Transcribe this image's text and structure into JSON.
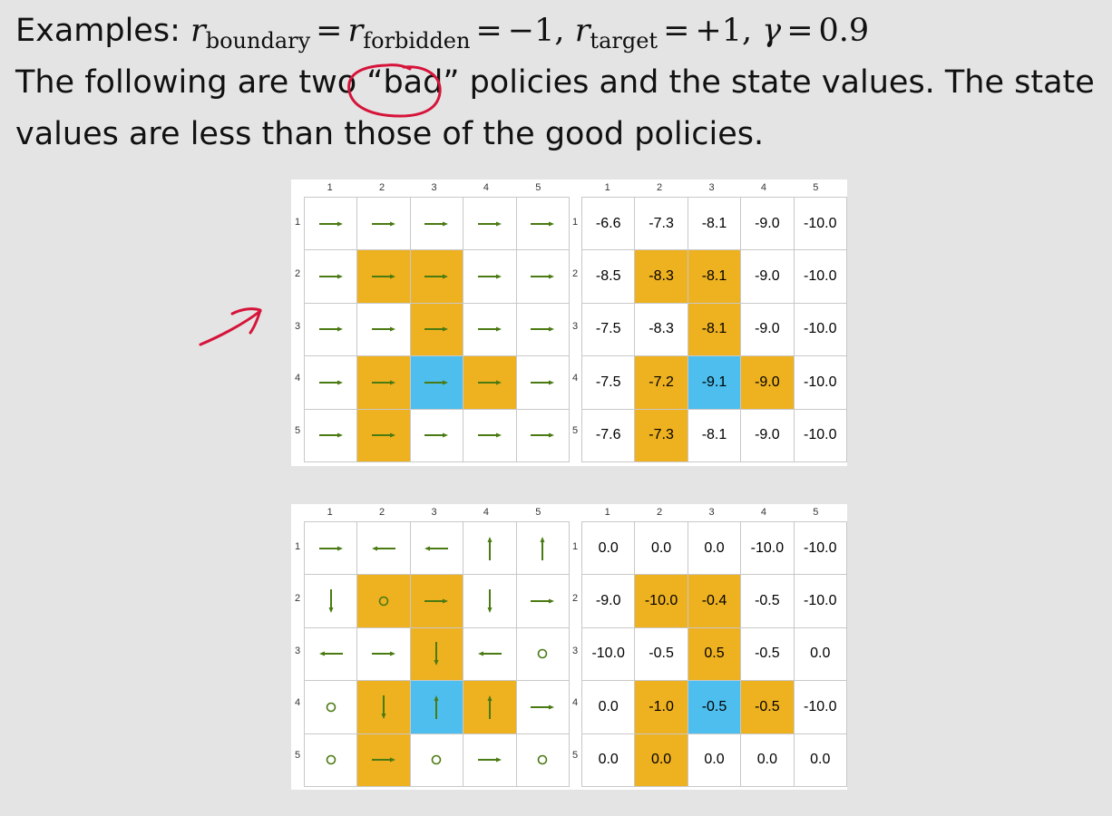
{
  "slide": {
    "line1_prefix": "Examples: ",
    "line2": "The following are two “bad” policies and the state values. The state",
    "line3": "values are less than those of the good policies."
  },
  "math": {
    "r_symbol": "r",
    "boundary_sub": "boundary",
    "forbidden_sub": "forbidden",
    "target_sub": "target",
    "eq": "=",
    "boundary_value": "−1",
    "target_value": "+1",
    "gamma_symbol": "γ",
    "gamma_value": "0.9",
    "comma": ","
  },
  "grid_labels": {
    "cols": [
      "1",
      "2",
      "3",
      "4",
      "5"
    ],
    "rows": [
      "1",
      "2",
      "3",
      "4",
      "5"
    ]
  },
  "colors": {
    "forbidden": "#eeb120",
    "target": "#4dbeed",
    "arrow": "#4a7a12",
    "annotation": "#d6143a"
  },
  "cell_types": [
    [
      "",
      "",
      "",
      "",
      ""
    ],
    [
      "",
      "forbidden",
      "forbidden",
      "",
      ""
    ],
    [
      "",
      "",
      "forbidden",
      "",
      ""
    ],
    [
      "",
      "forbidden",
      "target",
      "forbidden",
      ""
    ],
    [
      "",
      "forbidden",
      "",
      "",
      ""
    ]
  ],
  "examples": [
    {
      "actions": [
        [
          "right",
          "right",
          "right",
          "right",
          "right"
        ],
        [
          "right",
          "right",
          "right",
          "right",
          "right"
        ],
        [
          "right",
          "right",
          "right",
          "right",
          "right"
        ],
        [
          "right",
          "right",
          "right",
          "right",
          "right"
        ],
        [
          "right",
          "right",
          "right",
          "right",
          "right"
        ]
      ],
      "values": [
        [
          "-6.6",
          "-7.3",
          "-8.1",
          "-9.0",
          "-10.0"
        ],
        [
          "-8.5",
          "-8.3",
          "-8.1",
          "-9.0",
          "-10.0"
        ],
        [
          "-7.5",
          "-8.3",
          "-8.1",
          "-9.0",
          "-10.0"
        ],
        [
          "-7.5",
          "-7.2",
          "-9.1",
          "-9.0",
          "-10.0"
        ],
        [
          "-7.6",
          "-7.3",
          "-8.1",
          "-9.0",
          "-10.0"
        ]
      ]
    },
    {
      "actions": [
        [
          "right",
          "left",
          "left",
          "up",
          "up"
        ],
        [
          "down",
          "stay",
          "right",
          "down",
          "right"
        ],
        [
          "left",
          "right",
          "down",
          "left",
          "stay"
        ],
        [
          "stay",
          "down",
          "up",
          "up",
          "right"
        ],
        [
          "stay",
          "right",
          "stay",
          "right",
          "stay"
        ]
      ],
      "values": [
        [
          "0.0",
          "0.0",
          "0.0",
          "-10.0",
          "-10.0"
        ],
        [
          "-9.0",
          "-10.0",
          "-0.4",
          "-0.5",
          "-10.0"
        ],
        [
          "-10.0",
          "-0.5",
          "0.5",
          "-0.5",
          "0.0"
        ],
        [
          "0.0",
          "-1.0",
          "-0.5",
          "-0.5",
          "-10.0"
        ],
        [
          "0.0",
          "0.0",
          "0.0",
          "0.0",
          "0.0"
        ]
      ]
    }
  ]
}
